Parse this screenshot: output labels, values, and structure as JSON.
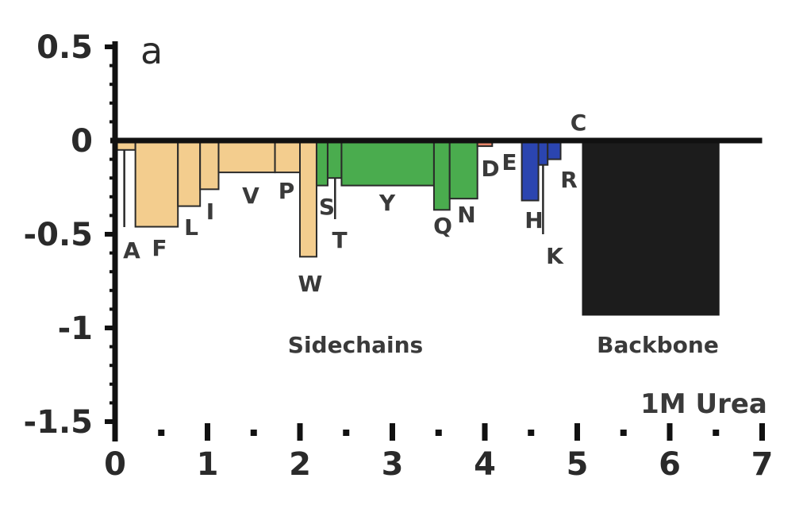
{
  "chart_data": {
    "type": "bar",
    "panel_label": "a",
    "title": "",
    "xlabel": "",
    "ylabel": "",
    "xlim": [
      0,
      7
    ],
    "ylim": [
      -1.5,
      0.5
    ],
    "x_ticks": [
      "0",
      "1",
      "2",
      "3",
      "4",
      "5",
      "6",
      "7"
    ],
    "y_ticks": [
      "0.5",
      "0",
      "-0.5",
      "-1",
      "-1.5"
    ],
    "annotations": {
      "sidechains": "Sidechains",
      "backbone": "Backbone",
      "condition": "1M Urea"
    },
    "colors": {
      "hydrophobic": "#f3cd8e",
      "polar": "#4aac4e",
      "acidic": "#e8866a",
      "basic": "#2b45b0",
      "backbone": "#1c1c1c"
    },
    "bars": [
      {
        "label": "A",
        "x0": 0.0,
        "x1": 0.22,
        "value": -0.05,
        "color_key": "hydrophobic"
      },
      {
        "label": "F",
        "x0": 0.22,
        "x1": 0.68,
        "value": -0.46,
        "color_key": "hydrophobic"
      },
      {
        "label": "L",
        "x0": 0.68,
        "x1": 0.92,
        "value": -0.35,
        "color_key": "hydrophobic"
      },
      {
        "label": "I",
        "x0": 0.92,
        "x1": 1.12,
        "value": -0.26,
        "color_key": "hydrophobic"
      },
      {
        "label": "V",
        "x0": 1.12,
        "x1": 1.73,
        "value": -0.17,
        "color_key": "hydrophobic"
      },
      {
        "label": "P",
        "x0": 1.73,
        "x1": 2.0,
        "value": -0.17,
        "color_key": "hydrophobic"
      },
      {
        "label": "W",
        "x0": 2.0,
        "x1": 2.18,
        "value": -0.62,
        "color_key": "hydrophobic"
      },
      {
        "label": "S",
        "x0": 2.18,
        "x1": 2.3,
        "value": -0.24,
        "color_key": "polar"
      },
      {
        "label": "T",
        "x0": 2.3,
        "x1": 2.45,
        "value": -0.2,
        "color_key": "polar"
      },
      {
        "label": "Y",
        "x0": 2.45,
        "x1": 3.45,
        "value": -0.24,
        "color_key": "polar"
      },
      {
        "label": "Q",
        "x0": 3.45,
        "x1": 3.62,
        "value": -0.37,
        "color_key": "polar"
      },
      {
        "label": "N",
        "x0": 3.62,
        "x1": 3.92,
        "value": -0.31,
        "color_key": "polar"
      },
      {
        "label": "D",
        "x0": 3.92,
        "x1": 4.08,
        "value": -0.03,
        "color_key": "acidic"
      },
      {
        "label": "E",
        "x0": 4.08,
        "x1": 4.4,
        "value": -0.01,
        "color_key": "acidic"
      },
      {
        "label": "H",
        "x0": 4.4,
        "x1": 4.58,
        "value": -0.32,
        "color_key": "basic"
      },
      {
        "label": "K",
        "x0": 4.58,
        "x1": 4.68,
        "value": -0.13,
        "color_key": "basic"
      },
      {
        "label": "R",
        "x0": 4.68,
        "x1": 4.82,
        "value": -0.1,
        "color_key": "basic"
      },
      {
        "label": "C",
        "x0": 4.82,
        "x1": 5.0,
        "value": 0.0,
        "color_key": "hydrophobic"
      },
      {
        "label": "Backbone",
        "x0": 5.06,
        "x1": 6.53,
        "value": -0.93,
        "color_key": "backbone"
      }
    ]
  }
}
